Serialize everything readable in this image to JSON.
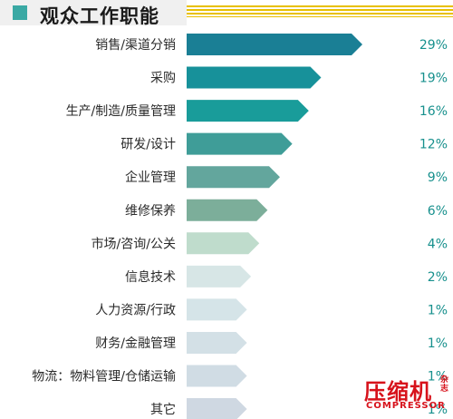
{
  "header": {
    "title": "观众工作职能"
  },
  "chart_data": {
    "type": "bar",
    "orientation": "horizontal",
    "categories": [
      "销售/渠道分销",
      "采购",
      "生产/制造/质量管理",
      "研发/设计",
      "企业管理",
      "维修保养",
      "市场/咨询/公关",
      "信息技术",
      "人力资源/行政",
      "财务/金融管理",
      "物流：物料管理/仓储运输",
      "其它"
    ],
    "values": [
      29,
      19,
      16,
      12,
      9,
      6,
      4,
      2,
      1,
      1,
      1,
      1
    ],
    "value_labels": [
      "29%",
      "19%",
      "16%",
      "12%",
      "9%",
      "6%",
      "4%",
      "2%",
      "1%",
      "1%",
      "1%",
      "1%"
    ],
    "colors": [
      "#1a7f95",
      "#17919a",
      "#199c9a",
      "#3f9d98",
      "#63a69d",
      "#7cae9a",
      "#bfdccc",
      "#d7e6e6",
      "#d5e4e8",
      "#d3e0e6",
      "#d0dce4",
      "#cfd8e2"
    ],
    "label_color": "#17908d",
    "legend": "none",
    "grid": false
  },
  "watermark": {
    "main": "压缩机",
    "side": "杂志",
    "sub": "COMPRESSOR"
  }
}
